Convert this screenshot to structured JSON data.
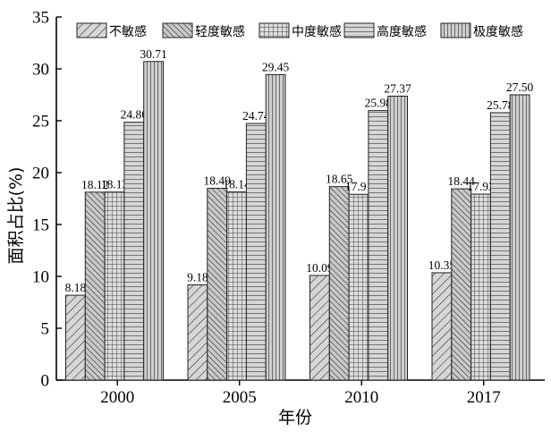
{
  "chart_data": {
    "type": "bar",
    "title": "",
    "xlabel": "年份",
    "ylabel": "面积占比(%)",
    "ylim": [
      0,
      35
    ],
    "yticks": [
      "0",
      "5",
      "10",
      "15",
      "20",
      "25",
      "30",
      "35"
    ],
    "categories": [
      "2000",
      "2005",
      "2010",
      "2017"
    ],
    "grid": false,
    "legend_position": "top",
    "series": [
      {
        "name": "不敏感",
        "values": [
          8.18,
          9.18,
          10.09,
          10.35
        ],
        "labels": [
          "8.18",
          "9.18",
          "10.09",
          "10.35"
        ],
        "pattern": "diag-right"
      },
      {
        "name": "轻度敏感",
        "values": [
          18.12,
          18.49,
          18.65,
          18.44
        ],
        "labels": [
          "18.12",
          "18.49",
          "18.65",
          "18.44"
        ],
        "pattern": "diag-left-dense"
      },
      {
        "name": "中度敏感",
        "values": [
          18.13,
          18.14,
          17.91,
          17.93
        ],
        "labels": [
          "18.13",
          "18.14",
          "17.91",
          "17.93"
        ],
        "pattern": "grid"
      },
      {
        "name": "高度敏感",
        "values": [
          24.86,
          24.74,
          25.98,
          25.78
        ],
        "labels": [
          "24.86",
          "24.74",
          "25.98",
          "25.78"
        ],
        "pattern": "horizontal"
      },
      {
        "name": "极度敏感",
        "values": [
          30.71,
          29.45,
          27.37,
          27.5
        ],
        "labels": [
          "30.71",
          "29.45",
          "27.37",
          "27.50"
        ],
        "pattern": "vertical"
      }
    ]
  }
}
